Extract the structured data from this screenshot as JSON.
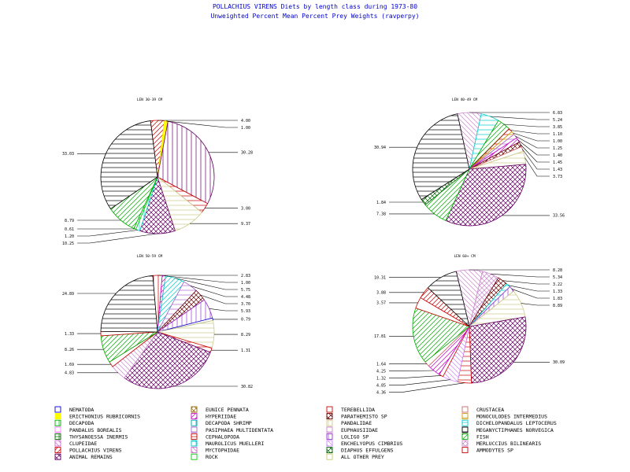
{
  "title": "POLLACHIUS VIRENS Diets by length class during 1973-80",
  "subtitle": "Unweighted Percent Mean Percent Prey  Weights (ravperpy)",
  "legend": [
    {
      "label": "NEMATODA",
      "color": "#0000cc",
      "pattern": "solid-outline"
    },
    {
      "label": "ERICTHONIUS RUBRICORNIS",
      "color": "#ffff00",
      "pattern": "solid"
    },
    {
      "label": "DECAPODA",
      "color": "#00aa00",
      "pattern": "vertical"
    },
    {
      "label": "PANDALUS BOREALIS",
      "color": "#ff80ff",
      "pattern": "horizontal"
    },
    {
      "label": "THYSANOESSA INERMIS",
      "color": "#006600",
      "pattern": "cross"
    },
    {
      "label": "CLUPEIDAE",
      "color": "#cc66cc",
      "pattern": "diag-rev"
    },
    {
      "label": "POLLACHIUS VIRENS",
      "color": "#cc0000",
      "pattern": "diag"
    },
    {
      "label": "ANIMAL REMAINS",
      "color": "#660066",
      "pattern": "crosshatch"
    },
    {
      "label": "EUNICE PENNATA",
      "color": "#996600",
      "pattern": "crosshatch"
    },
    {
      "label": "HYPERIIDAE",
      "color": "#cc00cc",
      "pattern": "diag"
    },
    {
      "label": "DECAPODA SHRIMP",
      "color": "#00aaaa",
      "pattern": "vertical"
    },
    {
      "label": "PASIPHAEA MULTIDENTATA",
      "color": "#aa66cc",
      "pattern": "horizontal"
    },
    {
      "label": "CEPHALOPODA",
      "color": "#cc0000",
      "pattern": "horizontal"
    },
    {
      "label": "MAUROLICUS MUELLERI",
      "color": "#00cccc",
      "pattern": "cross"
    },
    {
      "label": "MYCTOPHIDAE",
      "color": "#cc66cc",
      "pattern": "diag-rev"
    },
    {
      "label": "ROCK",
      "color": "#00cc00",
      "pattern": "solid-outline"
    },
    {
      "label": "TEREBELLIDA",
      "color": "#cc0000",
      "pattern": "solid-outline"
    },
    {
      "label": "PARATHEMISTO SP",
      "color": "#660000",
      "pattern": "crosshatch"
    },
    {
      "label": "PANDALIDAE",
      "color": "#cccc88",
      "pattern": "vertical"
    },
    {
      "label": "EUPHAUSIIDAE",
      "color": "#cc88cc",
      "pattern": "horizontal"
    },
    {
      "label": "LOLIGO SP",
      "color": "#9933cc",
      "pattern": "vertical"
    },
    {
      "label": "ENCHELYOPUS CIMBRIUS",
      "color": "#cc88ff",
      "pattern": "diag-rev"
    },
    {
      "label": "DIAPHUS EFFULGENS",
      "color": "#006600",
      "pattern": "crosshatch"
    },
    {
      "label": "ALL OTHER PREY",
      "color": "#cccc66",
      "pattern": "solid-outline"
    },
    {
      "label": "CRUSTACEA",
      "color": "#cc6666",
      "pattern": "solid-outline"
    },
    {
      "label": "MONOCULODES INTERMEDIUS",
      "color": "#cc9900",
      "pattern": "horizontal"
    },
    {
      "label": "DICHELOPANDALUS LEPTOCERUS",
      "color": "#00cccc",
      "pattern": "horizontal"
    },
    {
      "label": "MEGANYCTIPHANES NORVEGICA",
      "color": "#000000",
      "pattern": "horizontal"
    },
    {
      "label": "FISH",
      "color": "#00aa00",
      "pattern": "diag"
    },
    {
      "label": "MERLUCCIUS BILINEARIS",
      "color": "#cc88cc",
      "pattern": "crosshatch"
    },
    {
      "label": "AMMODYTES SP",
      "color": "#cc0000",
      "pattern": "solid-outline"
    }
  ],
  "chart_data": [
    {
      "type": "pie",
      "title": "LEN 30-39 CM",
      "slices": [
        {
          "name": "POLLACHIUS VIRENS",
          "value": 4.0,
          "color": "#cc0000",
          "pattern": "diag",
          "label": "4.00"
        },
        {
          "name": "ERICTHONIUS RUBRICORNIS",
          "value": 1.0,
          "color": "#ffff00",
          "pattern": "solid",
          "label": "1.00"
        },
        {
          "name": "HYPERIIDAE",
          "value": 30.28,
          "color": "#660066",
          "pattern": "vertical",
          "label": "30.28"
        },
        {
          "name": "CEPHALOPODA",
          "value": 3.0,
          "color": "#cc0000",
          "pattern": "horizontal",
          "label": "3.00"
        },
        {
          "name": "PANDALIDAE",
          "value": 9.37,
          "color": "#cccc88",
          "pattern": "horizontal",
          "label": "9.37"
        },
        {
          "name": "ANIMAL REMAINS",
          "value": 10.25,
          "color": "#660066",
          "pattern": "crosshatch",
          "label": "10.25"
        },
        {
          "name": "DECAPODA SHRIMP",
          "value": 1.2,
          "color": "#00cccc",
          "pattern": "vertical",
          "label": "1.20"
        },
        {
          "name": "ROCK",
          "value": 0.61,
          "color": "#00cc00",
          "pattern": "vertical",
          "label": "0.61"
        },
        {
          "name": "FISH",
          "value": 8.79,
          "color": "#00aa00",
          "pattern": "diag",
          "label": "8.79"
        },
        {
          "name": "MEGANYCTIPHANES NORVEGICA",
          "value": 33.03,
          "color": "#000000",
          "pattern": "horizontal",
          "label": "33.03"
        }
      ]
    },
    {
      "type": "pie",
      "title": "LEN 40-49 CM",
      "slices": [
        {
          "name": "CLUPEIDAE",
          "value": 6.83,
          "color": "#cc88cc",
          "pattern": "diag-rev",
          "label": "6.83"
        },
        {
          "name": "DECAPODA SHRIMP",
          "value": 5.24,
          "color": "#00cccc",
          "pattern": "horizontal",
          "label": "5.24"
        },
        {
          "name": "FISH",
          "value": 3.85,
          "color": "#00aa00",
          "pattern": "diag",
          "label": "3.85"
        },
        {
          "name": "CEPHALOPODA",
          "value": 1.1,
          "color": "#cc0000",
          "pattern": "horizontal",
          "label": "1.10"
        },
        {
          "name": "MONOCULODES INTERMEDIUS",
          "value": 1.0,
          "color": "#cc9900",
          "pattern": "horizontal",
          "label": "1.00"
        },
        {
          "name": "PASIPHAEA MULTIDENTATA",
          "value": 1.25,
          "color": "#aa66cc",
          "pattern": "horizontal",
          "label": "1.25"
        },
        {
          "name": "HYPERIIDAE",
          "value": 1.4,
          "color": "#cc00cc",
          "pattern": "diag",
          "label": "1.40"
        },
        {
          "name": "PARATHEMISTO SP",
          "value": 1.45,
          "color": "#660000",
          "pattern": "crosshatch",
          "label": "1.45"
        },
        {
          "name": "CRUSTACEA",
          "value": 1.43,
          "color": "#cc6666",
          "pattern": "solid-outline",
          "label": "1.43"
        },
        {
          "name": "PANDALIDAE",
          "value": 3.73,
          "color": "#cccc88",
          "pattern": "horizontal",
          "label": "3.73"
        },
        {
          "name": "ANIMAL REMAINS",
          "value": 33.56,
          "color": "#660066",
          "pattern": "crosshatch",
          "label": "33.56"
        },
        {
          "name": "ROCK",
          "value": 7.38,
          "color": "#00aa00",
          "pattern": "diag",
          "label": "7.38"
        },
        {
          "name": "DIAPHUS EFFULGENS",
          "value": 1.84,
          "color": "#006600",
          "pattern": "crosshatch",
          "label": "1.84"
        },
        {
          "name": "MEGANYCTIPHANES NORVEGICA",
          "value": 30.94,
          "color": "#000000",
          "pattern": "horizontal",
          "label": "30.94"
        }
      ]
    },
    {
      "type": "pie",
      "title": "LEN 50-59 CM",
      "slices": [
        {
          "name": "POLLACHIUS VIRENS",
          "value": 2.83,
          "color": "#cc0000",
          "pattern": "vertical",
          "label": "2.83"
        },
        {
          "name": "HYPERIIDAE",
          "value": 1.0,
          "color": "#cc00cc",
          "pattern": "diag",
          "label": "1.00"
        },
        {
          "name": "DECAPODA SHRIMP",
          "value": 5.75,
          "color": "#00cccc",
          "pattern": "diag",
          "label": "5.75"
        },
        {
          "name": "PASIPHAEA MULTIDENTATA",
          "value": 4.48,
          "color": "#aa66cc",
          "pattern": "horizontal",
          "label": "4.48"
        },
        {
          "name": "PARATHEMISTO SP",
          "value": 3.7,
          "color": "#660000",
          "pattern": "crosshatch",
          "label": "3.70"
        },
        {
          "name": "LOLIGO SP",
          "value": 5.93,
          "color": "#9933cc",
          "pattern": "vertical",
          "label": "5.93"
        },
        {
          "name": "NEMATODA",
          "value": 0.79,
          "color": "#0000cc",
          "pattern": "solid-outline",
          "label": "0.79"
        },
        {
          "name": "PANDALIDAE",
          "value": 8.29,
          "color": "#cccc88",
          "pattern": "horizontal",
          "label": "8.29"
        },
        {
          "name": "CEPHALOPODA",
          "value": 1.31,
          "color": "#cc0000",
          "pattern": "horizontal",
          "label": "1.31"
        },
        {
          "name": "ANIMAL REMAINS",
          "value": 30.82,
          "color": "#660066",
          "pattern": "crosshatch",
          "label": "30.82"
        },
        {
          "name": "CLUPEIDAE",
          "value": 4.83,
          "color": "#cc88cc",
          "pattern": "diag-rev",
          "label": "4.83"
        },
        {
          "name": "AMMODYTES SP",
          "value": 1.69,
          "color": "#cc0000",
          "pattern": "solid-outline",
          "label": "1.69"
        },
        {
          "name": "FISH",
          "value": 8.26,
          "color": "#00aa00",
          "pattern": "diag",
          "label": "8.26"
        },
        {
          "name": "TEREBELLIDA",
          "value": 1.33,
          "color": "#cc0000",
          "pattern": "solid-outline",
          "label": "1.33"
        },
        {
          "name": "MEGANYCTIPHANES NORVEGICA",
          "value": 24.89,
          "color": "#000000",
          "pattern": "horizontal",
          "label": "24.89"
        }
      ]
    },
    {
      "type": "pie",
      "title": "LEN 60+ CM",
      "slices": [
        {
          "name": "CLUPEIDAE",
          "value": 8.28,
          "color": "#cc88cc",
          "pattern": "diag-rev",
          "label": "8.28"
        },
        {
          "name": "MERLUCCIUS BILINEARIS",
          "value": 5.34,
          "color": "#cc88cc",
          "pattern": "crosshatch",
          "label": "5.34"
        },
        {
          "name": "PARATHEMISTO SP",
          "value": 3.22,
          "color": "#660000",
          "pattern": "crosshatch",
          "label": "3.22"
        },
        {
          "name": "DECAPODA SHRIMP",
          "value": 1.33,
          "color": "#00cccc",
          "pattern": "horizontal",
          "label": "1.33"
        },
        {
          "name": "LOLIGO SP",
          "value": 1.83,
          "color": "#9933cc",
          "pattern": "vertical",
          "label": "1.83"
        },
        {
          "name": "PANDALIDAE",
          "value": 8.89,
          "color": "#cccc88",
          "pattern": "horizontal",
          "label": "8.89"
        },
        {
          "name": "ANIMAL REMAINS",
          "value": 30.09,
          "color": "#660066",
          "pattern": "crosshatch",
          "label": "30.09"
        },
        {
          "name": "CEPHALOPODA",
          "value": 4.36,
          "color": "#cc0000",
          "pattern": "horizontal",
          "label": "4.36"
        },
        {
          "name": "ENCHELYOPUS CIMBRIUS",
          "value": 4.85,
          "color": "#cc88ff",
          "pattern": "diag-rev",
          "label": "4.85"
        },
        {
          "name": "TEREBELLIDA",
          "value": 1.32,
          "color": "#cc0000",
          "pattern": "solid-outline",
          "label": "1.32"
        },
        {
          "name": "HYPERIIDAE",
          "value": 4.25,
          "color": "#cc00cc",
          "pattern": "diag",
          "label": "4.25"
        },
        {
          "name": "CRUSTACEA",
          "value": 1.64,
          "color": "#cc6666",
          "pattern": "solid-outline",
          "label": "1.64"
        },
        {
          "name": "FISH",
          "value": 17.81,
          "color": "#00aa00",
          "pattern": "diag",
          "label": "17.81"
        },
        {
          "name": "AMMODYTES SP",
          "value": 3.57,
          "color": "#cc0000",
          "pattern": "solid-outline",
          "label": "3.57"
        },
        {
          "name": "POLLACHIUS VIRENS",
          "value": 3.88,
          "color": "#cc0000",
          "pattern": "diag",
          "label": "3.88"
        },
        {
          "name": "MEGANYCTIPHANES NORVEGICA",
          "value": 10.31,
          "color": "#000000",
          "pattern": "horizontal",
          "label": "10.31"
        }
      ]
    }
  ]
}
